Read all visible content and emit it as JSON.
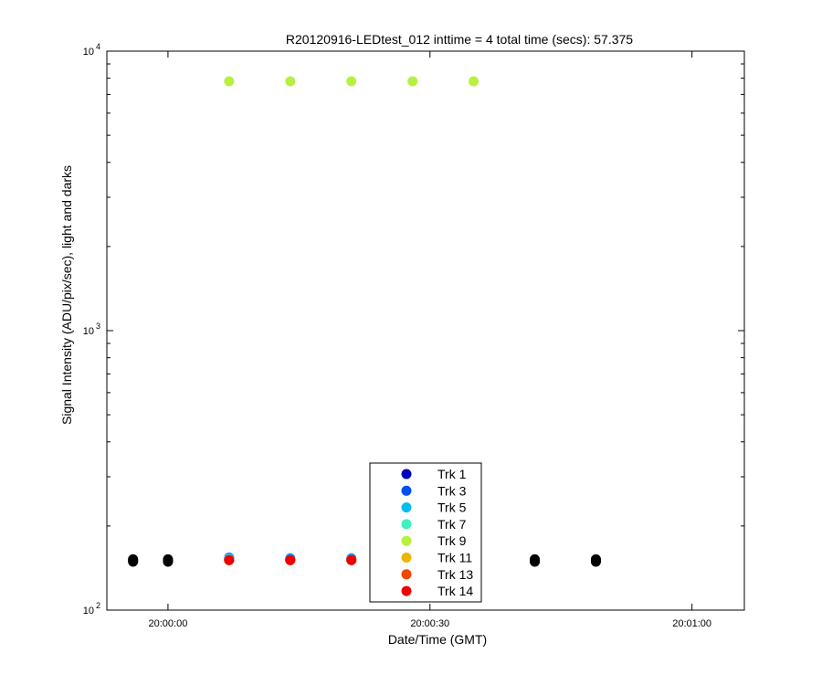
{
  "chart_data": {
    "type": "scatter",
    "title": "R20120916-LEDtest_012 inttime = 4 total time (secs): 57.375",
    "xlabel": "Date/Time (GMT)",
    "ylabel": "Signal Intensity (ADU/pix/sec), light and darks",
    "y_scale": "log",
    "ylim": [
      100,
      10000
    ],
    "xlim": [
      "19:59:53",
      "20:01:06"
    ],
    "x_ticks": [
      "20:00:00",
      "20:00:30",
      "20:01:00"
    ],
    "y_ticks": [
      {
        "base": "10",
        "exp": "2",
        "value": 100
      },
      {
        "base": "10",
        "exp": "3",
        "value": 1000
      },
      {
        "base": "10",
        "exp": "4",
        "value": 10000
      }
    ],
    "grid": false,
    "legend_position": "bottom-center",
    "series": [
      {
        "name": "Trk 1",
        "color": "#0000b8",
        "points": [
          [
            "20:00:07",
            152
          ],
          [
            "20:00:14",
            151
          ],
          [
            "20:00:21",
            151
          ],
          [
            "20:00:28",
            151
          ],
          [
            "20:00:35",
            152
          ]
        ]
      },
      {
        "name": "Trk 3",
        "color": "#0050f0",
        "points": [
          [
            "20:00:07",
            154
          ],
          [
            "20:00:14",
            153
          ],
          [
            "20:00:21",
            153
          ],
          [
            "20:00:28",
            153
          ],
          [
            "20:00:35",
            154
          ]
        ]
      },
      {
        "name": "Trk 5",
        "color": "#00bcf0",
        "points": [
          [
            "20:00:07",
            153
          ],
          [
            "20:00:14",
            152
          ],
          [
            "20:00:21",
            152
          ],
          [
            "20:00:28",
            152
          ],
          [
            "20:00:35",
            153
          ]
        ]
      },
      {
        "name": "Trk 7",
        "color": "#40f0c0",
        "points": [
          [
            "20:00:07",
            152
          ],
          [
            "20:00:14",
            151
          ],
          [
            "20:00:21",
            151
          ],
          [
            "20:00:28",
            151
          ],
          [
            "20:00:35",
            152
          ]
        ]
      },
      {
        "name": "Trk 9",
        "color": "#b8f040",
        "points": [
          [
            "20:00:07",
            7800
          ],
          [
            "20:00:14",
            7800
          ],
          [
            "20:00:21",
            7800
          ],
          [
            "20:00:28",
            7800
          ],
          [
            "20:00:35",
            7800
          ]
        ]
      },
      {
        "name": "Trk 11",
        "color": "#f0b400",
        "points": [
          [
            "20:00:07",
            151
          ],
          [
            "20:00:14",
            151
          ],
          [
            "20:00:21",
            151
          ],
          [
            "20:00:28",
            151
          ],
          [
            "20:00:35",
            151
          ]
        ]
      },
      {
        "name": "Trk 13",
        "color": "#f04800",
        "points": [
          [
            "20:00:07",
            151
          ],
          [
            "20:00:14",
            151
          ],
          [
            "20:00:21",
            151
          ],
          [
            "20:00:28",
            151
          ],
          [
            "20:00:35",
            151
          ]
        ]
      },
      {
        "name": "Trk 14",
        "color": "#f00000",
        "points": [
          [
            "20:00:07",
            151
          ],
          [
            "20:00:14",
            151
          ],
          [
            "20:00:21",
            151
          ],
          [
            "20:00:28",
            151
          ],
          [
            "20:00:35",
            151
          ]
        ]
      }
    ],
    "darks": {
      "color": "#000000",
      "points": [
        [
          "19:59:56",
          149
        ],
        [
          "19:59:56",
          150
        ],
        [
          "19:59:56",
          151
        ],
        [
          "19:59:56",
          152
        ],
        [
          "20:00:00",
          149
        ],
        [
          "20:00:00",
          150
        ],
        [
          "20:00:00",
          151
        ],
        [
          "20:00:00",
          152
        ],
        [
          "20:00:42",
          149
        ],
        [
          "20:00:42",
          150
        ],
        [
          "20:00:42",
          151
        ],
        [
          "20:00:42",
          152
        ],
        [
          "20:00:49",
          149
        ],
        [
          "20:00:49",
          150
        ],
        [
          "20:00:49",
          151
        ],
        [
          "20:00:49",
          152
        ]
      ]
    }
  }
}
